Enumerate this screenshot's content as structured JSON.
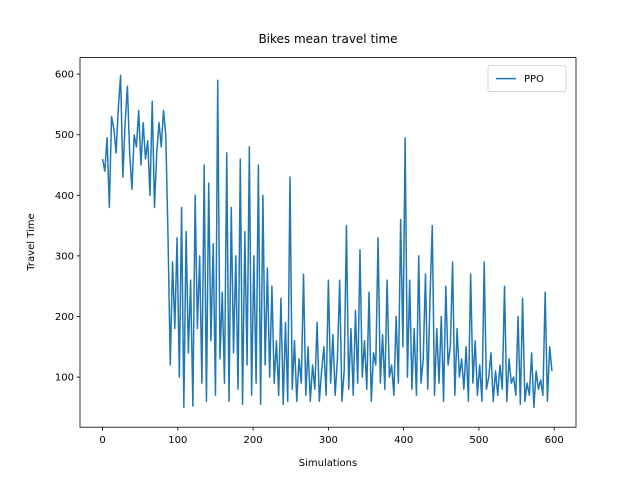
{
  "chart_data": {
    "type": "line",
    "title": "Bikes mean travel time",
    "xlabel": "Simulations",
    "ylabel": "Travel Time",
    "x": [
      0,
      3,
      6,
      9,
      12,
      15,
      18,
      21,
      24,
      27,
      30,
      33,
      36,
      39,
      42,
      45,
      48,
      51,
      54,
      57,
      60,
      63,
      66,
      69,
      72,
      75,
      78,
      81,
      84,
      87,
      90,
      93,
      96,
      99,
      102,
      105,
      108,
      111,
      114,
      117,
      120,
      123,
      126,
      129,
      132,
      135,
      138,
      141,
      144,
      147,
      150,
      153,
      156,
      159,
      162,
      165,
      168,
      171,
      174,
      177,
      180,
      183,
      186,
      189,
      192,
      195,
      198,
      201,
      204,
      207,
      210,
      213,
      216,
      219,
      222,
      225,
      228,
      231,
      234,
      237,
      240,
      243,
      246,
      249,
      252,
      255,
      258,
      261,
      264,
      267,
      270,
      273,
      276,
      279,
      282,
      285,
      288,
      291,
      294,
      297,
      300,
      303,
      306,
      309,
      312,
      315,
      318,
      321,
      324,
      327,
      330,
      333,
      336,
      339,
      342,
      345,
      348,
      351,
      354,
      357,
      360,
      363,
      366,
      369,
      372,
      375,
      378,
      381,
      384,
      387,
      390,
      393,
      396,
      399,
      402,
      405,
      408,
      411,
      414,
      417,
      420,
      423,
      426,
      429,
      432,
      435,
      438,
      441,
      444,
      447,
      450,
      453,
      456,
      459,
      462,
      465,
      468,
      471,
      474,
      477,
      480,
      483,
      486,
      489,
      492,
      495,
      498,
      501,
      504,
      507,
      510,
      513,
      516,
      519,
      522,
      525,
      528,
      531,
      534,
      537,
      540,
      543,
      546,
      549,
      552,
      555,
      558,
      561,
      564,
      567,
      570,
      573,
      576,
      579,
      582,
      585,
      588,
      591,
      594,
      597
    ],
    "series": [
      {
        "name": "PPO",
        "color": "#1f77b4",
        "values": [
          460,
          440,
          495,
          380,
          530,
          510,
          470,
          545,
          598,
          430,
          520,
          580,
          470,
          410,
          500,
          480,
          540,
          450,
          520,
          460,
          490,
          400,
          555,
          380,
          470,
          520,
          480,
          540,
          500,
          330,
          120,
          290,
          180,
          330,
          100,
          380,
          50,
          340,
          140,
          260,
          52,
          400,
          180,
          300,
          90,
          450,
          60,
          420,
          160,
          320,
          70,
          590,
          130,
          240,
          90,
          470,
          60,
          380,
          140,
          300,
          80,
          460,
          55,
          340,
          120,
          480,
          70,
          300,
          90,
          450,
          55,
          400,
          120,
          280,
          100,
          250,
          90,
          160,
          70,
          230,
          55,
          190,
          60,
          430,
          80,
          160,
          60,
          130,
          90,
          270,
          70,
          150,
          60,
          120,
          80,
          190,
          60,
          110,
          150,
          70,
          260,
          90,
          170,
          70,
          130,
          260,
          60,
          110,
          350,
          80,
          180,
          70,
          210,
          90,
          310,
          100,
          160,
          80,
          240,
          60,
          140,
          120,
          330,
          90,
          170,
          80,
          260,
          100,
          120,
          70,
          200,
          90,
          360,
          150,
          495,
          100,
          260,
          80,
          180,
          70,
          300,
          90,
          130,
          270,
          80,
          230,
          350,
          70,
          180,
          90,
          200,
          60,
          250,
          120,
          150,
          290,
          70,
          180,
          100,
          130,
          80,
          150,
          60,
          270,
          90,
          160,
          70,
          120,
          60,
          290,
          80,
          100,
          140,
          60,
          110,
          70,
          120,
          80,
          250,
          60,
          130,
          90,
          100,
          70,
          200,
          55,
          230,
          60,
          90,
          70,
          140,
          50,
          110,
          80,
          95,
          70,
          240,
          60,
          150,
          110
        ]
      }
    ],
    "xlim": [
      -29.95,
      628.95
    ],
    "ylim": [
      17.3,
      627.3
    ],
    "xticks": [
      0,
      100,
      200,
      300,
      400,
      500,
      600
    ],
    "yticks": [
      100,
      200,
      300,
      400,
      500,
      600
    ],
    "legend": "upper right"
  }
}
